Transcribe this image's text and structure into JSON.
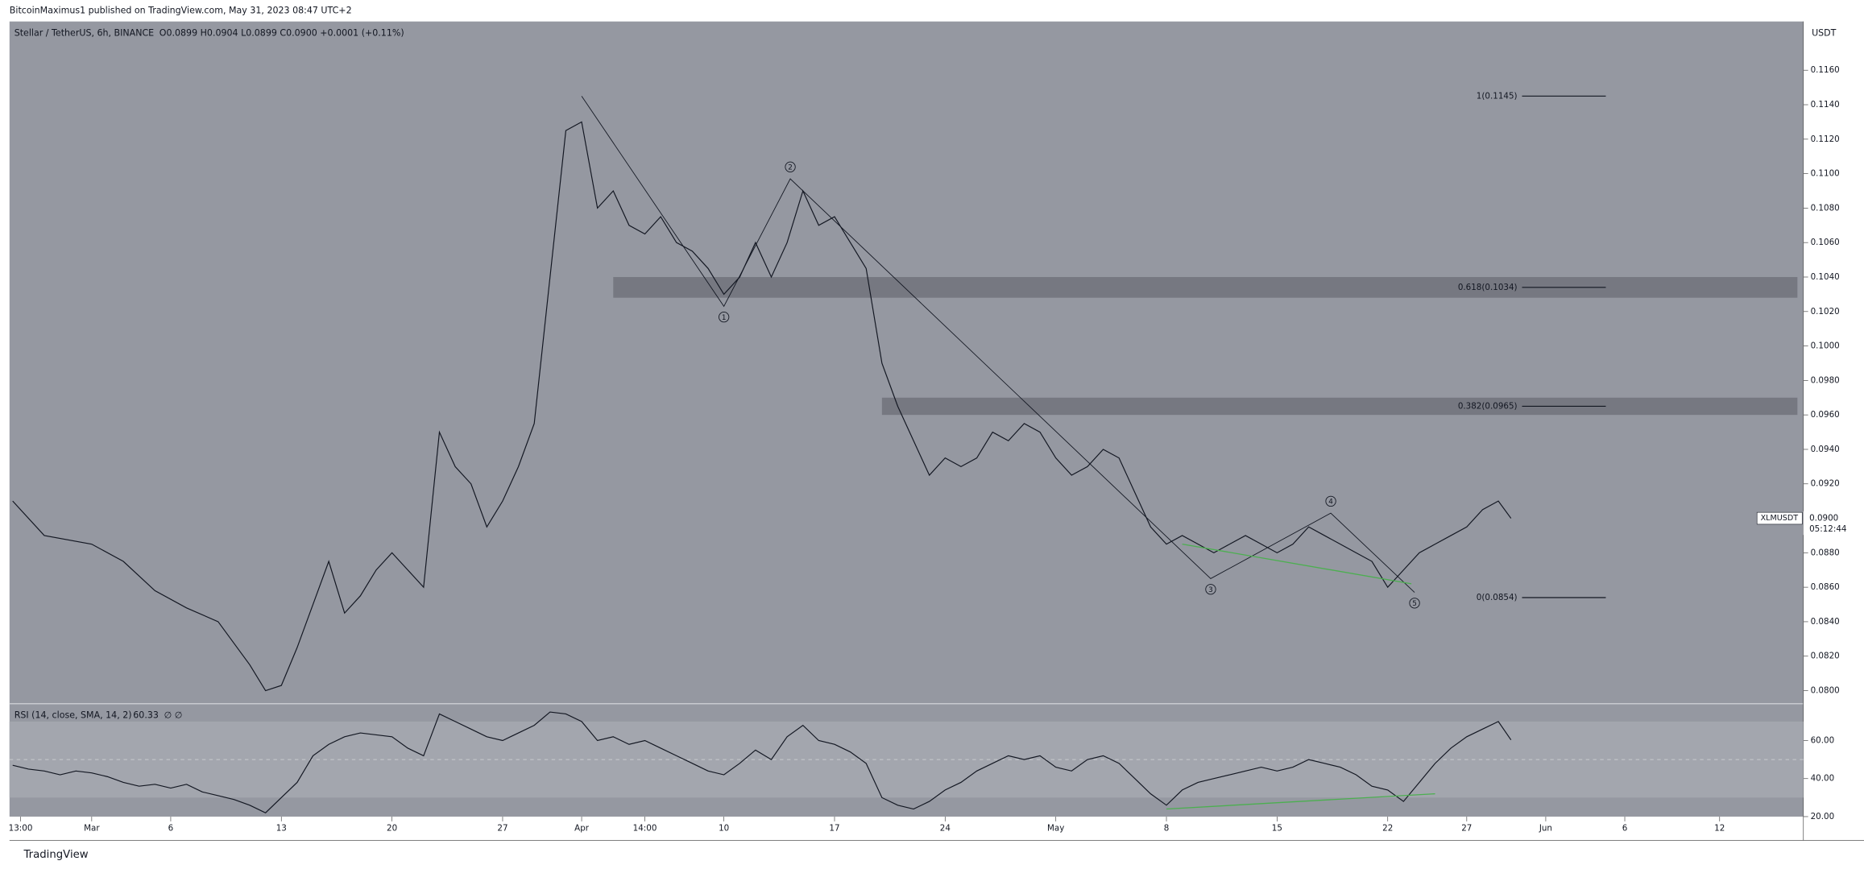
{
  "header": {
    "publisher": "BitcoinMaximus1 published on TradingView.com, May 31, 2023 08:47 UTC+2",
    "footer": "TradingView"
  },
  "chart_data": [
    {
      "type": "line",
      "title": "Stellar / TetherUS, 6h, BINANCE",
      "ohlc": "O0.0899 H0.0904 L0.0899 C0.0900 +0.0001 (+0.11%)",
      "y_axis_label": "USDT",
      "symbol": "XLMUSDT",
      "last_price": {
        "value": 0.09,
        "label": "0.0900"
      },
      "countdown": "05:12:44",
      "color": "#131722",
      "x": [
        55,
        57,
        60,
        62,
        64,
        66,
        68,
        70,
        71,
        72,
        73,
        74,
        75,
        76,
        77,
        78,
        79,
        80,
        81,
        82,
        83,
        84,
        85,
        86,
        87,
        88,
        89,
        90,
        91,
        92,
        93,
        94,
        95,
        96,
        97,
        98,
        99,
        100,
        101,
        102,
        103,
        104,
        105,
        106,
        107,
        108,
        109,
        110,
        111,
        112,
        113,
        114,
        115,
        116,
        117,
        118,
        119,
        120,
        121,
        122,
        123,
        124,
        125,
        126,
        127,
        128,
        129,
        130,
        131,
        132,
        133,
        134,
        135,
        136,
        137,
        138,
        139,
        140,
        141,
        142,
        143,
        144,
        145,
        146,
        147,
        148,
        149,
        149.8
      ],
      "values": [
        0.091,
        0.089,
        0.0885,
        0.0875,
        0.0858,
        0.0848,
        0.084,
        0.0815,
        0.08,
        0.0803,
        0.0825,
        0.085,
        0.0875,
        0.0845,
        0.0855,
        0.087,
        0.088,
        0.087,
        0.086,
        0.095,
        0.093,
        0.092,
        0.0895,
        0.091,
        0.093,
        0.0955,
        0.104,
        0.1125,
        0.113,
        0.108,
        0.109,
        0.107,
        0.1065,
        0.1075,
        0.106,
        0.1055,
        0.1045,
        0.103,
        0.104,
        0.106,
        0.104,
        0.106,
        0.109,
        0.107,
        0.1075,
        0.106,
        0.1045,
        0.099,
        0.0965,
        0.0945,
        0.0925,
        0.0935,
        0.093,
        0.0935,
        0.095,
        0.0945,
        0.0955,
        0.095,
        0.0935,
        0.0925,
        0.093,
        0.094,
        0.0935,
        0.0915,
        0.0895,
        0.0885,
        0.089,
        0.0885,
        0.088,
        0.0885,
        0.089,
        0.0885,
        0.088,
        0.0885,
        0.0895,
        0.089,
        0.0885,
        0.088,
        0.0875,
        0.086,
        0.087,
        0.088,
        0.0885,
        0.089,
        0.0895,
        0.0905,
        0.091,
        0.09
      ],
      "xlim": [
        54.8,
        168.3
      ],
      "xticks": [
        {
          "value": 55.5,
          "label": "13:00"
        },
        {
          "value": 60,
          "label": "Mar"
        },
        {
          "value": 65,
          "label": "6"
        },
        {
          "value": 72,
          "label": "13"
        },
        {
          "value": 79,
          "label": "20"
        },
        {
          "value": 86,
          "label": "27"
        },
        {
          "value": 91,
          "label": "Apr"
        },
        {
          "value": 95,
          "label": "14:00"
        },
        {
          "value": 100,
          "label": "10"
        },
        {
          "value": 107,
          "label": "17"
        },
        {
          "value": 114,
          "label": "24"
        },
        {
          "value": 121,
          "label": "May"
        },
        {
          "value": 128,
          "label": "8"
        },
        {
          "value": 135,
          "label": "15"
        },
        {
          "value": 142,
          "label": "22"
        },
        {
          "value": 147,
          "label": "27"
        },
        {
          "value": 152,
          "label": "Jun"
        },
        {
          "value": 157,
          "label": "6"
        },
        {
          "value": 163,
          "label": "12"
        }
      ],
      "ylim": [
        0.07931,
        0.11883
      ],
      "yticks": [
        {
          "value": 0.08,
          "label": "0.0800"
        },
        {
          "value": 0.082,
          "label": "0.0820"
        },
        {
          "value": 0.084,
          "label": "0.0840"
        },
        {
          "value": 0.086,
          "label": "0.0860"
        },
        {
          "value": 0.088,
          "label": "0.0880"
        },
        {
          "value": 0.09,
          "label": "0.0900"
        },
        {
          "value": 0.092,
          "label": "0.0920"
        },
        {
          "value": 0.094,
          "label": "0.0940"
        },
        {
          "value": 0.096,
          "label": "0.0960"
        },
        {
          "value": 0.098,
          "label": "0.0980"
        },
        {
          "value": 0.1,
          "label": "0.1000"
        },
        {
          "value": 0.102,
          "label": "0.1020"
        },
        {
          "value": 0.104,
          "label": "0.1040"
        },
        {
          "value": 0.106,
          "label": "0.1060"
        },
        {
          "value": 0.108,
          "label": "0.1080"
        },
        {
          "value": 0.11,
          "label": "0.1100"
        },
        {
          "value": 0.112,
          "label": "0.1120"
        },
        {
          "value": 0.114,
          "label": "0.1140"
        },
        {
          "value": 0.116,
          "label": "0.1160"
        }
      ],
      "zones": [
        {
          "x": 93,
          "ylim": [
            0.1028,
            0.104
          ]
        },
        {
          "x": 110,
          "ylim": [
            0.096,
            0.097
          ]
        }
      ],
      "fib_levels": [
        {
          "value": 0.1145,
          "label": "1(0.1145)"
        },
        {
          "value": 0.1034,
          "label": "0.618(0.1034)"
        },
        {
          "value": 0.0965,
          "label": "0.382(0.0965)"
        },
        {
          "value": 0.0854,
          "label": "0(0.0854)"
        }
      ],
      "fib_xlim": [
        150.5,
        155.8
      ],
      "waves": {
        "x": [
          91,
          100,
          104.2,
          130.8,
          138.4,
          143.7
        ],
        "values": [
          0.1145,
          0.1023,
          0.1097,
          0.0865,
          0.0903,
          0.0857
        ],
        "labels": [
          null,
          "1",
          "2",
          "3",
          "4",
          "5"
        ]
      },
      "divergence": {
        "color": "#4caf50",
        "x": [
          129,
          143.5
        ],
        "values": [
          0.0885,
          0.0862
        ]
      }
    },
    {
      "type": "line",
      "title": "RSI (14, close, SMA, 14, 2)",
      "last_value": {
        "value": 60.33,
        "label": "60.33"
      },
      "extra": "∅ ∅",
      "color": "#131722",
      "x": [
        55,
        56,
        57,
        58,
        59,
        60,
        61,
        62,
        63,
        64,
        65,
        66,
        67,
        68,
        69,
        70,
        71,
        72,
        73,
        74,
        75,
        76,
        77,
        78,
        79,
        80,
        81,
        82,
        83,
        84,
        85,
        86,
        87,
        88,
        89,
        90,
        91,
        92,
        93,
        94,
        95,
        96,
        97,
        98,
        99,
        100,
        101,
        102,
        103,
        104,
        105,
        106,
        107,
        108,
        109,
        110,
        111,
        112,
        113,
        114,
        115,
        116,
        117,
        118,
        119,
        120,
        121,
        122,
        123,
        124,
        125,
        126,
        127,
        128,
        129,
        130,
        131,
        132,
        133,
        134,
        135,
        136,
        137,
        138,
        139,
        140,
        141,
        142,
        143,
        144,
        145,
        146,
        147,
        148,
        149,
        149.8
      ],
      "values": [
        47,
        45,
        44,
        42,
        44,
        43,
        41,
        38,
        36,
        37,
        35,
        37,
        33,
        31,
        29,
        26,
        22,
        30,
        38,
        52,
        58,
        62,
        64,
        63,
        62,
        56,
        52,
        74,
        70,
        66,
        62,
        60,
        64,
        68,
        75,
        74,
        70,
        60,
        62,
        58,
        60,
        56,
        52,
        48,
        44,
        42,
        48,
        55,
        50,
        62,
        68,
        60,
        58,
        54,
        48,
        30,
        26,
        24,
        28,
        34,
        38,
        44,
        48,
        52,
        50,
        52,
        46,
        44,
        50,
        52,
        48,
        40,
        32,
        26,
        34,
        38,
        40,
        42,
        44,
        46,
        44,
        46,
        50,
        48,
        46,
        42,
        36,
        34,
        28,
        38,
        48,
        56,
        62,
        66,
        70,
        60.33
      ],
      "ylim": [
        20,
        78.75
      ],
      "yticks": [
        {
          "value": 20,
          "label": "20.00"
        },
        {
          "value": 40,
          "label": "40.00"
        },
        {
          "value": 60,
          "label": "60.00"
        }
      ],
      "bands": [
        30,
        70
      ],
      "midline": 50,
      "divergence": {
        "color": "#4caf50",
        "x": [
          128,
          145
        ],
        "values": [
          24,
          32
        ]
      }
    }
  ]
}
